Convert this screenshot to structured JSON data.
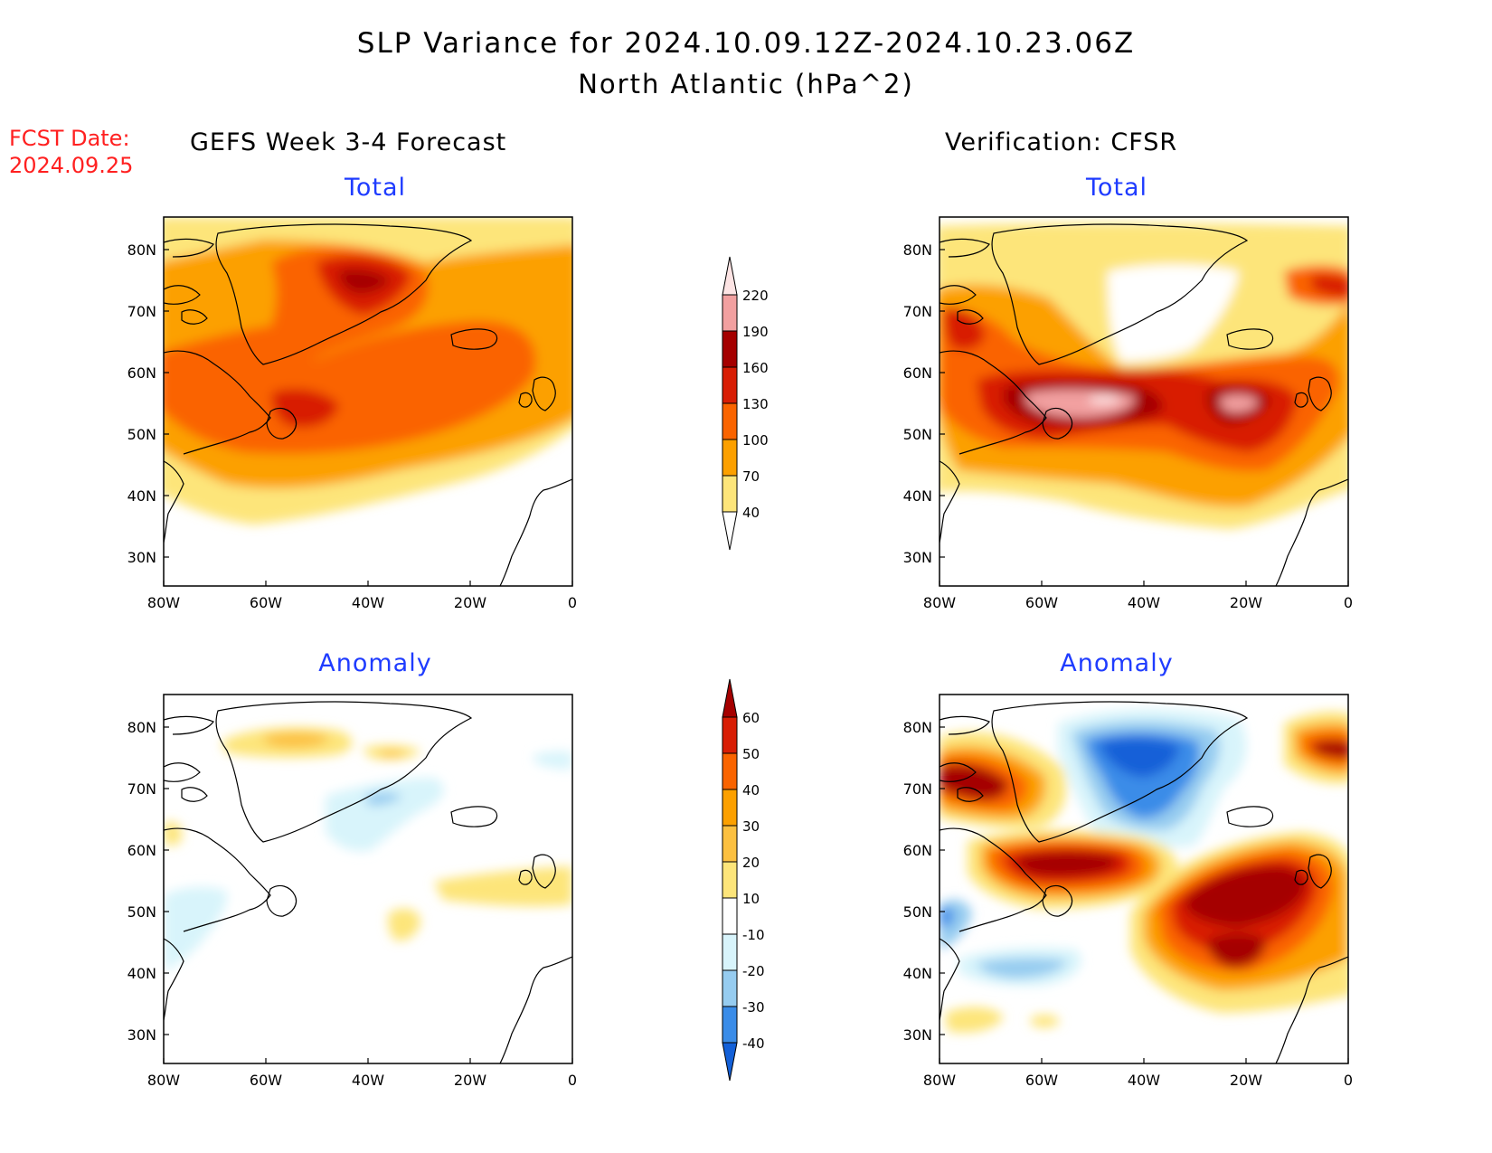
{
  "header": {
    "title": "SLP Variance for 2024.10.09.12Z-2024.10.23.06Z",
    "subtitle": "North Atlantic (hPa^2)",
    "fcst_label": "FCST Date:",
    "fcst_date": "2024.09.25"
  },
  "columns": {
    "left": "GEFS Week 3-4 Forecast",
    "right": "Verification: CFSR"
  },
  "panels": {
    "top_left_title": "Total",
    "top_right_title": "Total",
    "bottom_left_title": "Anomaly",
    "bottom_right_title": "Anomaly"
  },
  "axes": {
    "lat_labels": [
      "80N",
      "70N",
      "60N",
      "50N",
      "40N",
      "30N"
    ],
    "lon_labels": [
      "80W",
      "60W",
      "40W",
      "20W",
      "0"
    ]
  },
  "colorbars": {
    "total": {
      "levels": [
        "220",
        "190",
        "160",
        "130",
        "100",
        "70",
        "40"
      ],
      "colors": [
        "#fde4e4",
        "#f2a0a0",
        "#a50000",
        "#d81e05",
        "#fa6400",
        "#fca000",
        "#fde57a"
      ]
    },
    "anomaly": {
      "levels": [
        "60",
        "50",
        "40",
        "30",
        "20",
        "10",
        "-10",
        "-20",
        "-30",
        "-40"
      ],
      "colors": [
        "#a50000",
        "#d81e05",
        "#fa6400",
        "#fca000",
        "#fcc040",
        "#fde57a",
        "#ffffff",
        "#d8f4fb",
        "#96ccf0",
        "#3a8ce8",
        "#1360d8"
      ]
    }
  }
}
